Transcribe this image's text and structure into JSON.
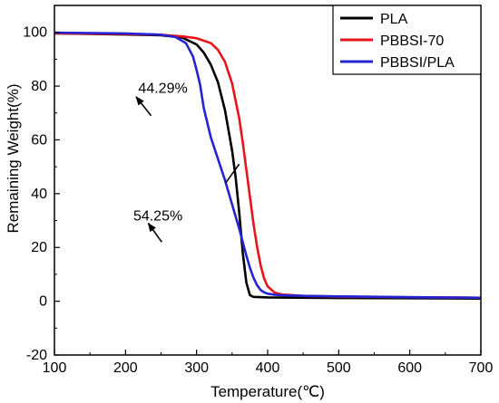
{
  "chart_data": {
    "type": "line",
    "xlabel": "Temperature(℃)",
    "ylabel": "Remaining Weight(%)",
    "xlim": [
      100,
      700
    ],
    "ylim": [
      -20,
      110
    ],
    "xticks": [
      100,
      200,
      300,
      400,
      500,
      600,
      700
    ],
    "yticks": [
      -20,
      0,
      20,
      40,
      60,
      80,
      100
    ],
    "grid": false,
    "legend_position": "top-right",
    "series": [
      {
        "name": "PLA",
        "color": "#000000",
        "x": [
          100,
          200,
          250,
          280,
          300,
          310,
          320,
          330,
          340,
          350,
          355,
          360,
          365,
          370,
          375,
          380,
          400,
          500,
          600,
          700
        ],
        "y": [
          99.6,
          99.2,
          98.9,
          98.0,
          95.5,
          92.5,
          88.0,
          81.5,
          71.0,
          56.0,
          46.0,
          33.0,
          18.0,
          7.0,
          2.3,
          1.6,
          1.4,
          1.2,
          1.1,
          1.0
        ]
      },
      {
        "name": "PBBSI-70",
        "color": "#e8131b",
        "x": [
          100,
          200,
          250,
          280,
          300,
          320,
          330,
          340,
          350,
          360,
          365,
          370,
          375,
          380,
          385,
          390,
          395,
          400,
          410,
          420,
          450,
          500,
          600,
          700
        ],
        "y": [
          99.6,
          99.4,
          99.1,
          98.5,
          97.8,
          96.0,
          93.5,
          89.0,
          81.0,
          68.0,
          59.0,
          49.0,
          39.0,
          29.0,
          20.5,
          13.5,
          8.5,
          5.5,
          3.2,
          2.5,
          2.0,
          1.7,
          1.5,
          1.3
        ]
      },
      {
        "name": "PBBSI/PLA",
        "color": "#2424d6",
        "x": [
          100,
          200,
          250,
          270,
          285,
          295,
          300,
          305,
          310,
          320,
          330,
          340,
          350,
          360,
          365,
          370,
          375,
          380,
          385,
          390,
          395,
          400,
          410,
          420,
          450,
          500,
          600,
          700
        ],
        "y": [
          99.9,
          99.6,
          99.1,
          98.3,
          96.0,
          91.0,
          86.0,
          80.5,
          72.0,
          61.0,
          53.0,
          45.0,
          36.0,
          27.0,
          22.0,
          17.0,
          12.5,
          8.8,
          6.0,
          4.2,
          3.3,
          2.8,
          2.4,
          2.2,
          2.0,
          1.8,
          1.5,
          1.3
        ]
      }
    ],
    "annotations": [
      {
        "text": "44.29%",
        "x": 218,
        "y": 77.5,
        "arrow_from": [
          236,
          69
        ],
        "arrow_to": [
          215,
          76
        ]
      },
      {
        "text": "54.25%",
        "x": 211,
        "y": 30.0,
        "arrow_from": [
          251,
          22
        ],
        "arrow_to": [
          232,
          29
        ]
      },
      {
        "text": "",
        "x": 0,
        "y": 0,
        "arrow_from": [
          341,
          44
        ],
        "arrow_to": [
          360,
          51
        ],
        "head": false
      }
    ]
  }
}
